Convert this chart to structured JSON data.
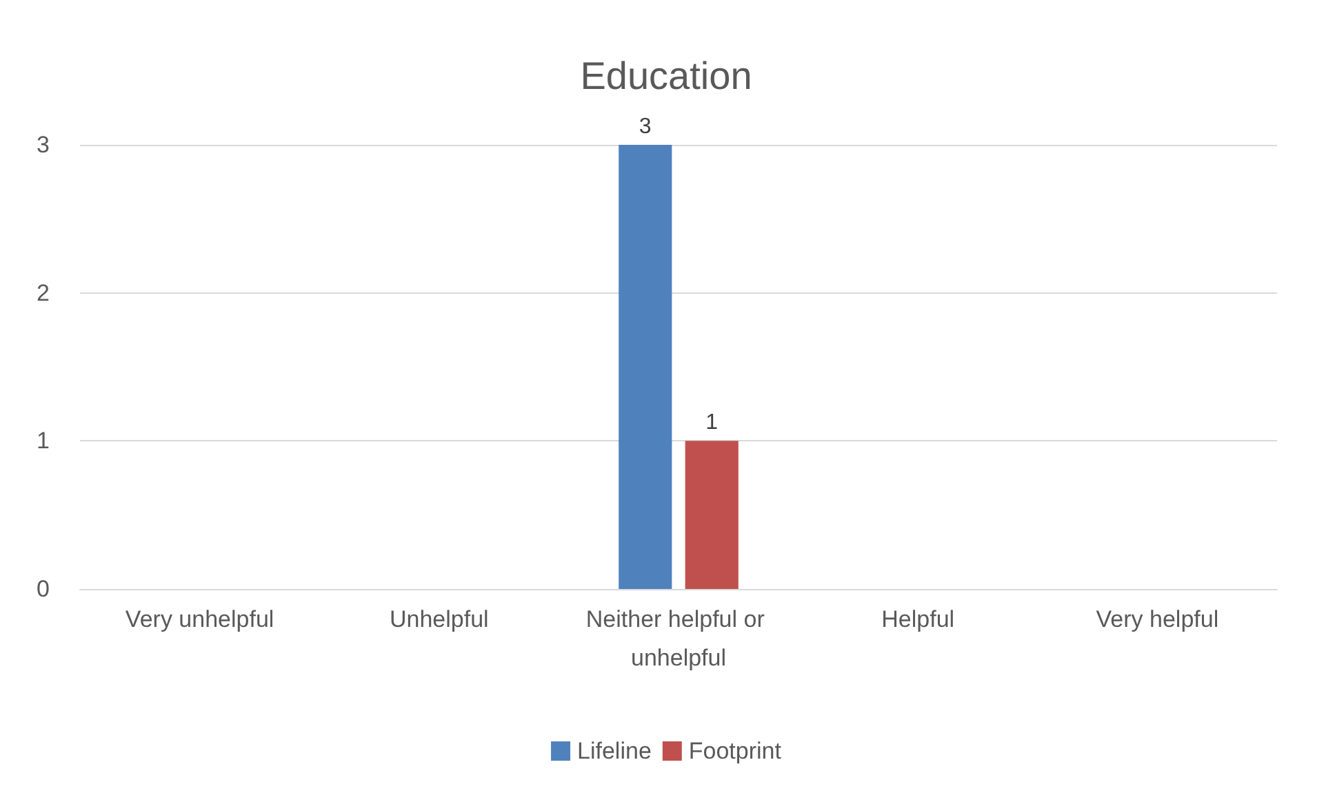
{
  "chart_data": {
    "type": "bar",
    "title": "Education",
    "categories": [
      "Very unhelpful",
      "Unhelpful",
      "Neither helpful or unhelpful",
      "Helpful",
      "Very helpful"
    ],
    "series": [
      {
        "name": "Lifeline",
        "color": "#4f81bd",
        "values": [
          0,
          0,
          3,
          0,
          0
        ],
        "value_labels": [
          null,
          null,
          "3",
          null,
          null
        ]
      },
      {
        "name": "Footprint",
        "color": "#c0504d",
        "values": [
          0,
          0,
          1,
          0,
          0
        ],
        "value_labels": [
          null,
          null,
          "1",
          null,
          null
        ]
      }
    ],
    "ylim": [
      0,
      3
    ],
    "yticks": [
      0,
      1,
      2,
      3
    ],
    "grid": "y",
    "legend": "bottom"
  }
}
